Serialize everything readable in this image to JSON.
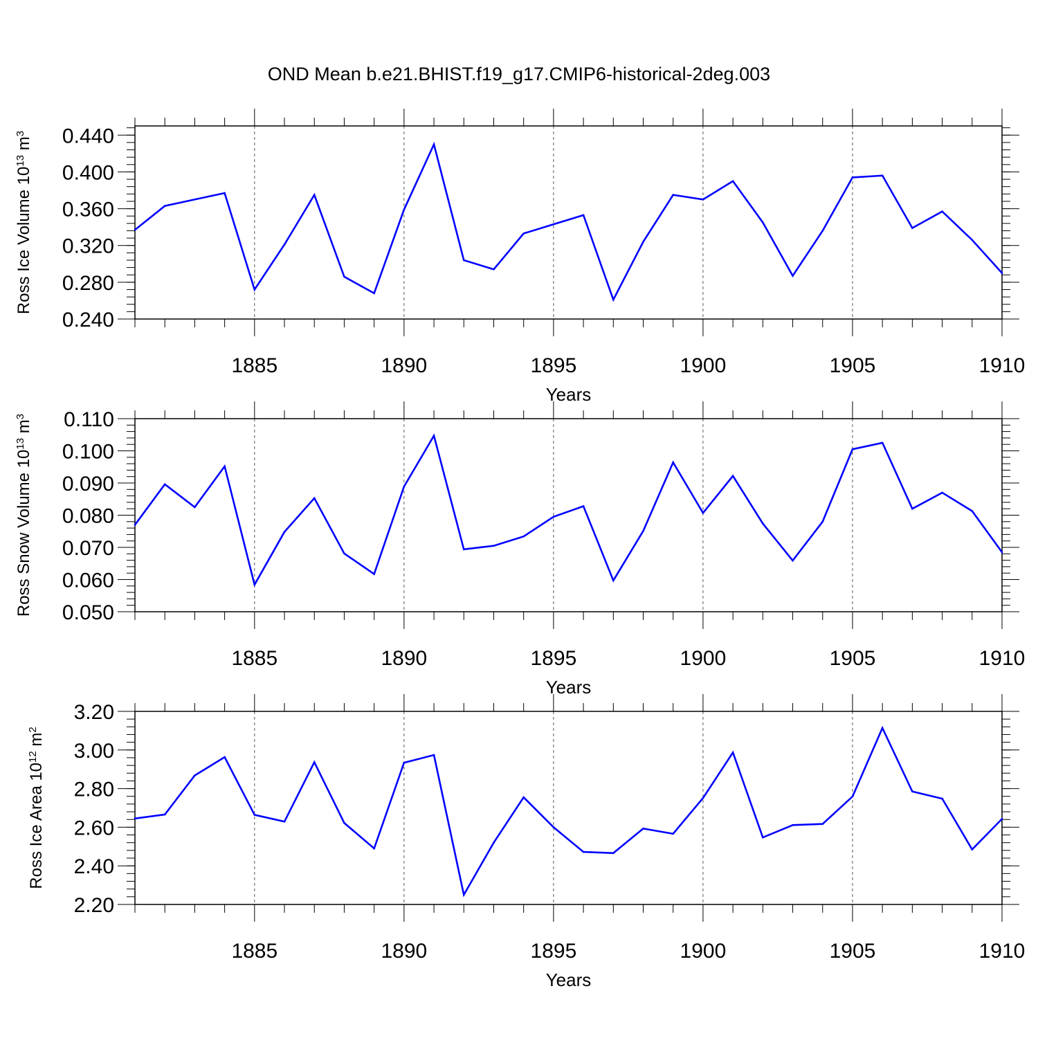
{
  "title": "OND Mean b.e21.BHIST.f19_g17.CMIP6-historical-2deg.003",
  "colors": {
    "line": "#0000ff",
    "axis": "#000000",
    "grid": "#555555"
  },
  "chart_data": [
    {
      "type": "line",
      "ylabel": {
        "text": "Ross Ice Volume 10",
        "exp": "13",
        "unit_text": " m",
        "unit_exp": "3"
      },
      "xlabel": "Years",
      "xlim": [
        1881,
        1910
      ],
      "ylim": [
        0.24,
        0.45
      ],
      "yticks": [
        0.24,
        0.28,
        0.32,
        0.36,
        0.4,
        0.44
      ],
      "ytick_labels": [
        "0.240",
        "0.280",
        "0.320",
        "0.360",
        "0.400",
        "0.440"
      ],
      "yminor_step": 0.008,
      "xticks": [
        1885,
        1890,
        1895,
        1900,
        1905,
        1910
      ],
      "xtick_labels": [
        "1885",
        "1890",
        "1895",
        "1900",
        "1905",
        "1910"
      ],
      "x": [
        1881,
        1882,
        1883,
        1884,
        1885,
        1886,
        1887,
        1888,
        1889,
        1890,
        1891,
        1892,
        1893,
        1894,
        1895,
        1896,
        1897,
        1898,
        1899,
        1900,
        1901,
        1902,
        1903,
        1904,
        1905,
        1906,
        1907,
        1908,
        1909,
        1910
      ],
      "values": [
        0.337,
        0.363,
        0.37,
        0.377,
        0.272,
        0.321,
        0.375,
        0.286,
        0.268,
        0.359,
        0.43,
        0.304,
        0.294,
        0.333,
        0.343,
        0.353,
        0.261,
        0.324,
        0.375,
        0.37,
        0.39,
        0.345,
        0.287,
        0.336,
        0.394,
        0.396,
        0.339,
        0.357,
        0.326,
        0.29
      ]
    },
    {
      "type": "line",
      "ylabel": {
        "text": "Ross Snow Volume 10",
        "exp": "13",
        "unit_text": " m",
        "unit_exp": "3"
      },
      "xlabel": "Years",
      "xlim": [
        1881,
        1910
      ],
      "ylim": [
        0.05,
        0.11
      ],
      "yticks": [
        0.05,
        0.06,
        0.07,
        0.08,
        0.09,
        0.1,
        0.11
      ],
      "ytick_labels": [
        "0.050",
        "0.060",
        "0.070",
        "0.080",
        "0.090",
        "0.100",
        "0.110"
      ],
      "yminor_step": 0.002,
      "xticks": [
        1885,
        1890,
        1895,
        1900,
        1905,
        1910
      ],
      "xtick_labels": [
        "1885",
        "1890",
        "1895",
        "1900",
        "1905",
        "1910"
      ],
      "x": [
        1881,
        1882,
        1883,
        1884,
        1885,
        1886,
        1887,
        1888,
        1889,
        1890,
        1891,
        1892,
        1893,
        1894,
        1895,
        1896,
        1897,
        1898,
        1899,
        1900,
        1901,
        1902,
        1903,
        1904,
        1905,
        1906,
        1907,
        1908,
        1909,
        1910
      ],
      "values": [
        0.077,
        0.0896,
        0.0825,
        0.0952,
        0.0584,
        0.0748,
        0.0853,
        0.0681,
        0.0617,
        0.0889,
        0.1047,
        0.0694,
        0.0705,
        0.0734,
        0.0795,
        0.0828,
        0.0597,
        0.0751,
        0.0964,
        0.0807,
        0.0922,
        0.0774,
        0.0659,
        0.078,
        0.1005,
        0.1025,
        0.082,
        0.087,
        0.0813,
        0.0685
      ]
    },
    {
      "type": "line",
      "ylabel": {
        "text": "Ross Ice Area 10",
        "exp": "12",
        "unit_text": " m",
        "unit_exp": "2"
      },
      "xlabel": "Years",
      "xlim": [
        1881,
        1910
      ],
      "ylim": [
        2.2,
        3.2
      ],
      "yticks": [
        2.2,
        2.4,
        2.6,
        2.8,
        3.0,
        3.2
      ],
      "ytick_labels": [
        "2.20",
        "2.40",
        "2.60",
        "2.80",
        "3.00",
        "3.20"
      ],
      "yminor_step": 0.04,
      "xticks": [
        1885,
        1890,
        1895,
        1900,
        1905,
        1910
      ],
      "xtick_labels": [
        "1885",
        "1890",
        "1895",
        "1900",
        "1905",
        "1910"
      ],
      "x": [
        1881,
        1882,
        1883,
        1884,
        1885,
        1886,
        1887,
        1888,
        1889,
        1890,
        1891,
        1892,
        1893,
        1894,
        1895,
        1896,
        1897,
        1898,
        1899,
        1900,
        1901,
        1902,
        1903,
        1904,
        1905,
        1906,
        1907,
        1908,
        1909,
        1910
      ],
      "values": [
        2.645,
        2.666,
        2.868,
        2.963,
        2.664,
        2.629,
        2.937,
        2.622,
        2.49,
        2.934,
        2.974,
        2.25,
        2.52,
        2.755,
        2.6,
        2.472,
        2.466,
        2.593,
        2.566,
        2.751,
        2.987,
        2.547,
        2.611,
        2.617,
        2.759,
        3.114,
        2.785,
        2.748,
        2.485,
        2.643
      ]
    }
  ]
}
